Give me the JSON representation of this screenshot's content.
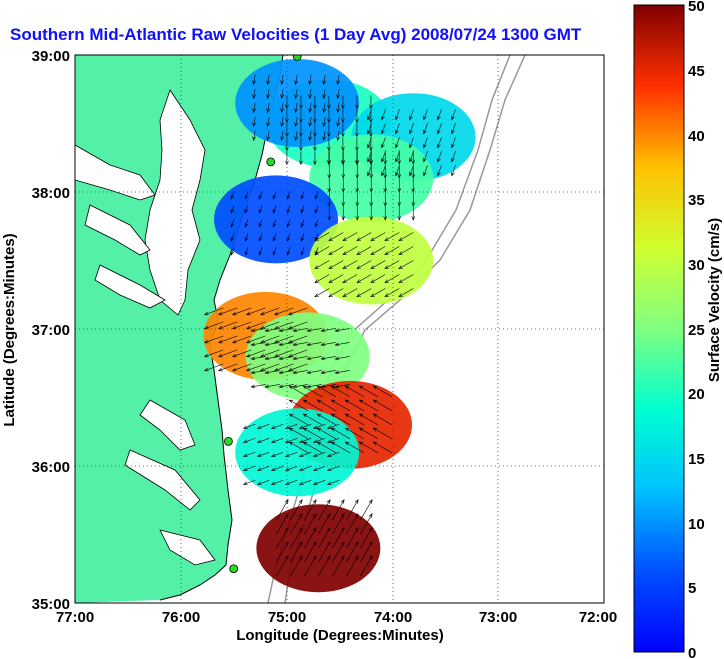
{
  "title": "Southern Mid-Atlantic Raw Velocities (1 Day Avg) 2008/07/24 1300 GMT",
  "xlabel": "Longitude (Degrees:Minutes)",
  "ylabel": "Latitude (Degrees:Minutes)",
  "colorbar_label": "Surface Velocity (cm/s)",
  "x_ticks": [
    "77:00",
    "76:00",
    "75:00",
    "74:00",
    "73:00",
    "72:00"
  ],
  "y_ticks": [
    "39:00",
    "38:00",
    "37:00",
    "36:00",
    "35:00"
  ],
  "colorbar_ticks": [
    "50",
    "45",
    "40",
    "35",
    "30",
    "25",
    "20",
    "15",
    "10",
    "5",
    "0"
  ],
  "colors": {
    "land": "#55f0a8",
    "grid": "#444444",
    "title": "#1010ff",
    "station": "#22dd22"
  },
  "chart_data": {
    "type": "heatmap",
    "title": "Southern Mid-Atlantic Raw Velocities (1 Day Avg) 2008/07/24 1300 GMT",
    "xlabel": "Longitude (Degrees:Minutes)",
    "ylabel": "Latitude (Degrees:Minutes)",
    "xlim": [
      -77,
      -72
    ],
    "ylim": [
      35,
      39
    ],
    "colorbar": {
      "label": "Surface Velocity (cm/s)",
      "range": [
        0,
        50
      ],
      "colormap": "jet"
    },
    "grid": true,
    "velocity_regions": [
      {
        "lon": -74.6,
        "lat": 38.5,
        "speed": 20,
        "direction_deg": 270
      },
      {
        "lon": -74.9,
        "lat": 38.65,
        "speed": 10,
        "direction_deg": 260
      },
      {
        "lon": -73.8,
        "lat": 38.4,
        "speed": 15,
        "direction_deg": 250
      },
      {
        "lon": -74.2,
        "lat": 38.1,
        "speed": 22,
        "direction_deg": 270
      },
      {
        "lon": -75.1,
        "lat": 37.8,
        "speed": 6,
        "direction_deg": 250
      },
      {
        "lon": -74.2,
        "lat": 37.5,
        "speed": 30,
        "direction_deg": 210
      },
      {
        "lon": -75.2,
        "lat": 36.95,
        "speed": 40,
        "direction_deg": 200
      },
      {
        "lon": -74.8,
        "lat": 36.8,
        "speed": 25,
        "direction_deg": 190
      },
      {
        "lon": -74.4,
        "lat": 36.3,
        "speed": 45,
        "direction_deg": 150
      },
      {
        "lon": -74.9,
        "lat": 36.1,
        "speed": 18,
        "direction_deg": 200
      },
      {
        "lon": -74.7,
        "lat": 35.4,
        "speed": 50,
        "direction_deg": 60
      }
    ],
    "stations": [
      {
        "lon": -74.9,
        "lat": 38.99
      },
      {
        "lon": -75.15,
        "lat": 38.22
      },
      {
        "lon": -75.55,
        "lat": 36.18
      },
      {
        "lon": -75.5,
        "lat": 35.25
      }
    ]
  }
}
